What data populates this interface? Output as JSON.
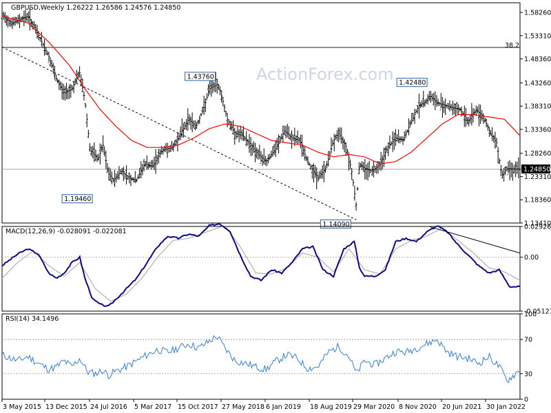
{
  "chart_data": [
    {
      "type": "ohlc",
      "header": "GBPUSD,Weekly  1.26222 1.26586 1.24576 1.24850",
      "watermark": "ActionForex.com",
      "colors": {
        "bars": "#000000",
        "ma": "#ff0000",
        "trend": "#000000",
        "fib": "#000000"
      },
      "y_ticks": [
        "1.58260",
        "1.53310",
        "1.48360",
        "1.43260",
        "1.38310",
        "1.33360",
        "1.28260",
        "1.23310",
        "1.18360",
        "1.13410"
      ],
      "ylim": [
        1.1341,
        1.6032
      ],
      "current_price": "1.24850",
      "fib": {
        "label": "38.2",
        "value": 1.508
      },
      "annotations": [
        {
          "text": "1.43760",
          "value": 1.4376,
          "t": 0.417
        },
        {
          "text": "1.19460",
          "value": 1.1946,
          "t": 0.185
        },
        {
          "text": "1.14090",
          "value": 1.1409,
          "t": 0.684
        },
        {
          "text": "1.42480",
          "value": 1.4248,
          "t": 0.826
        }
      ],
      "trendline": [
        [
          0.0,
          1.509
        ],
        [
          0.684,
          1.1409
        ]
      ],
      "price_path": [
        [
          0.0,
          1.575
        ],
        [
          0.02,
          1.56
        ],
        [
          0.05,
          1.575
        ],
        [
          0.07,
          1.535
        ],
        [
          0.09,
          1.49
        ],
        [
          0.105,
          1.44
        ],
        [
          0.12,
          1.41
        ],
        [
          0.135,
          1.42
        ],
        [
          0.15,
          1.455
        ],
        [
          0.16,
          1.395
        ],
        [
          0.17,
          1.29
        ],
        [
          0.185,
          1.27
        ],
        [
          0.195,
          1.3
        ],
        [
          0.205,
          1.24
        ],
        [
          0.215,
          1.225
        ],
        [
          0.23,
          1.245
        ],
        [
          0.245,
          1.23
        ],
        [
          0.26,
          1.225
        ],
        [
          0.275,
          1.26
        ],
        [
          0.29,
          1.255
        ],
        [
          0.31,
          1.29
        ],
        [
          0.33,
          1.295
        ],
        [
          0.345,
          1.325
        ],
        [
          0.36,
          1.355
        ],
        [
          0.375,
          1.34
        ],
        [
          0.39,
          1.38
        ],
        [
          0.4,
          1.42
        ],
        [
          0.417,
          1.43
        ],
        [
          0.425,
          1.4
        ],
        [
          0.435,
          1.355
        ],
        [
          0.45,
          1.325
        ],
        [
          0.465,
          1.32
        ],
        [
          0.48,
          1.3
        ],
        [
          0.495,
          1.28
        ],
        [
          0.51,
          1.265
        ],
        [
          0.53,
          1.295
        ],
        [
          0.545,
          1.33
        ],
        [
          0.56,
          1.315
        ],
        [
          0.575,
          1.31
        ],
        [
          0.59,
          1.265
        ],
        [
          0.61,
          1.23
        ],
        [
          0.625,
          1.25
        ],
        [
          0.64,
          1.31
        ],
        [
          0.65,
          1.325
        ],
        [
          0.665,
          1.295
        ],
        [
          0.675,
          1.245
        ],
        [
          0.684,
          1.17
        ],
        [
          0.69,
          1.26
        ],
        [
          0.7,
          1.25
        ],
        [
          0.715,
          1.245
        ],
        [
          0.73,
          1.26
        ],
        [
          0.745,
          1.295
        ],
        [
          0.76,
          1.315
        ],
        [
          0.775,
          1.31
        ],
        [
          0.79,
          1.35
        ],
        [
          0.805,
          1.385
        ],
        [
          0.815,
          1.39
        ],
        [
          0.826,
          1.405
        ],
        [
          0.84,
          1.39
        ],
        [
          0.855,
          1.385
        ],
        [
          0.87,
          1.38
        ],
        [
          0.885,
          1.375
        ],
        [
          0.9,
          1.35
        ],
        [
          0.915,
          1.375
        ],
        [
          0.93,
          1.36
        ],
        [
          0.945,
          1.32
        ],
        [
          0.955,
          1.305
        ],
        [
          0.965,
          1.235
        ],
        [
          0.975,
          1.25
        ],
        [
          1.0,
          1.2485
        ]
      ],
      "ma_path": [
        [
          0.0,
          1.575
        ],
        [
          0.05,
          1.56
        ],
        [
          0.09,
          1.52
        ],
        [
          0.13,
          1.47
        ],
        [
          0.16,
          1.42
        ],
        [
          0.19,
          1.375
        ],
        [
          0.22,
          1.34
        ],
        [
          0.25,
          1.31
        ],
        [
          0.28,
          1.295
        ],
        [
          0.31,
          1.295
        ],
        [
          0.34,
          1.3
        ],
        [
          0.37,
          1.315
        ],
        [
          0.4,
          1.335
        ],
        [
          0.43,
          1.345
        ],
        [
          0.46,
          1.34
        ],
        [
          0.49,
          1.325
        ],
        [
          0.52,
          1.31
        ],
        [
          0.55,
          1.305
        ],
        [
          0.58,
          1.3
        ],
        [
          0.61,
          1.285
        ],
        [
          0.64,
          1.275
        ],
        [
          0.67,
          1.28
        ],
        [
          0.7,
          1.275
        ],
        [
          0.73,
          1.26
        ],
        [
          0.76,
          1.265
        ],
        [
          0.79,
          1.285
        ],
        [
          0.82,
          1.315
        ],
        [
          0.85,
          1.345
        ],
        [
          0.88,
          1.365
        ],
        [
          0.91,
          1.365
        ],
        [
          0.94,
          1.36
        ],
        [
          0.97,
          1.355
        ],
        [
          1.0,
          1.32
        ]
      ]
    },
    {
      "type": "line",
      "title": "MACD(12,26,9) -0.028091 -0.022081",
      "y_ticks": [
        "0.029261",
        "0.00",
        "-0.051279"
      ],
      "ylim": [
        -0.0513,
        0.0293
      ],
      "zero_line": 0.0,
      "colors": {
        "macd": "#0a0a8a",
        "signal": "#b0b0b0",
        "trend": "#000000"
      },
      "trendline": [
        [
          0.826,
          0.029
        ],
        [
          1.0,
          0.004
        ]
      ],
      "macd_path": [
        [
          0.0,
          -0.008
        ],
        [
          0.03,
          0.003
        ],
        [
          0.05,
          0.008
        ],
        [
          0.07,
          0.003
        ],
        [
          0.09,
          -0.015
        ],
        [
          0.105,
          -0.02
        ],
        [
          0.12,
          -0.015
        ],
        [
          0.135,
          -0.005
        ],
        [
          0.15,
          0.0
        ],
        [
          0.16,
          -0.02
        ],
        [
          0.175,
          -0.04
        ],
        [
          0.19,
          -0.045
        ],
        [
          0.205,
          -0.047
        ],
        [
          0.22,
          -0.04
        ],
        [
          0.24,
          -0.03
        ],
        [
          0.26,
          -0.02
        ],
        [
          0.28,
          -0.005
        ],
        [
          0.3,
          0.01
        ],
        [
          0.32,
          0.02
        ],
        [
          0.34,
          0.018
        ],
        [
          0.36,
          0.022
        ],
        [
          0.38,
          0.02
        ],
        [
          0.4,
          0.03
        ],
        [
          0.42,
          0.032
        ],
        [
          0.44,
          0.025
        ],
        [
          0.46,
          0.002
        ],
        [
          0.48,
          -0.018
        ],
        [
          0.5,
          -0.022
        ],
        [
          0.52,
          -0.012
        ],
        [
          0.54,
          -0.015
        ],
        [
          0.56,
          -0.005
        ],
        [
          0.58,
          0.008
        ],
        [
          0.6,
          0.01
        ],
        [
          0.62,
          -0.012
        ],
        [
          0.64,
          -0.018
        ],
        [
          0.66,
          0.008
        ],
        [
          0.68,
          0.015
        ],
        [
          0.69,
          -0.01
        ],
        [
          0.7,
          -0.018
        ],
        [
          0.72,
          -0.018
        ],
        [
          0.74,
          -0.012
        ],
        [
          0.76,
          0.015
        ],
        [
          0.78,
          0.018
        ],
        [
          0.8,
          0.015
        ],
        [
          0.82,
          0.024
        ],
        [
          0.84,
          0.03
        ],
        [
          0.86,
          0.024
        ],
        [
          0.88,
          0.012
        ],
        [
          0.9,
          0.002
        ],
        [
          0.92,
          -0.008
        ],
        [
          0.94,
          -0.015
        ],
        [
          0.96,
          -0.012
        ],
        [
          0.98,
          -0.028
        ],
        [
          1.0,
          -0.028
        ]
      ],
      "signal_path": [
        [
          0.0,
          -0.02
        ],
        [
          0.03,
          -0.005
        ],
        [
          0.06,
          0.006
        ],
        [
          0.09,
          -0.008
        ],
        [
          0.12,
          -0.018
        ],
        [
          0.15,
          -0.005
        ],
        [
          0.18,
          -0.03
        ],
        [
          0.21,
          -0.042
        ],
        [
          0.24,
          -0.035
        ],
        [
          0.27,
          -0.02
        ],
        [
          0.3,
          0.0
        ],
        [
          0.33,
          0.016
        ],
        [
          0.36,
          0.018
        ],
        [
          0.4,
          0.025
        ],
        [
          0.43,
          0.03
        ],
        [
          0.46,
          0.01
        ],
        [
          0.49,
          -0.015
        ],
        [
          0.52,
          -0.016
        ],
        [
          0.55,
          -0.01
        ],
        [
          0.58,
          0.004
        ],
        [
          0.61,
          0.0
        ],
        [
          0.64,
          -0.014
        ],
        [
          0.67,
          0.008
        ],
        [
          0.7,
          -0.012
        ],
        [
          0.73,
          -0.016
        ],
        [
          0.76,
          0.008
        ],
        [
          0.79,
          0.016
        ],
        [
          0.82,
          0.02
        ],
        [
          0.85,
          0.028
        ],
        [
          0.88,
          0.016
        ],
        [
          0.91,
          0.004
        ],
        [
          0.94,
          -0.01
        ],
        [
          0.97,
          -0.014
        ],
        [
          1.0,
          -0.022
        ]
      ]
    },
    {
      "type": "line",
      "title": "RSI(14) 34.1496",
      "y_ticks": [
        "100",
        "70",
        "30",
        "0"
      ],
      "ylim": [
        0,
        100
      ],
      "levels": [
        70,
        30
      ],
      "colors": {
        "rsi": "#2f7fdf"
      },
      "rsi_path": [
        [
          0.0,
          52
        ],
        [
          0.03,
          45
        ],
        [
          0.05,
          50
        ],
        [
          0.07,
          42
        ],
        [
          0.09,
          35
        ],
        [
          0.105,
          38
        ],
        [
          0.12,
          45
        ],
        [
          0.135,
          38
        ],
        [
          0.15,
          48
        ],
        [
          0.165,
          32
        ],
        [
          0.18,
          30
        ],
        [
          0.195,
          34
        ],
        [
          0.205,
          28
        ],
        [
          0.22,
          33
        ],
        [
          0.24,
          38
        ],
        [
          0.26,
          45
        ],
        [
          0.28,
          52
        ],
        [
          0.3,
          58
        ],
        [
          0.32,
          55
        ],
        [
          0.34,
          60
        ],
        [
          0.36,
          65
        ],
        [
          0.38,
          60
        ],
        [
          0.4,
          68
        ],
        [
          0.415,
          74
        ],
        [
          0.43,
          60
        ],
        [
          0.45,
          45
        ],
        [
          0.47,
          42
        ],
        [
          0.49,
          38
        ],
        [
          0.51,
          35
        ],
        [
          0.53,
          45
        ],
        [
          0.55,
          52
        ],
        [
          0.57,
          48
        ],
        [
          0.59,
          36
        ],
        [
          0.61,
          38
        ],
        [
          0.63,
          55
        ],
        [
          0.65,
          62
        ],
        [
          0.67,
          50
        ],
        [
          0.684,
          30
        ],
        [
          0.7,
          45
        ],
        [
          0.72,
          40
        ],
        [
          0.74,
          48
        ],
        [
          0.76,
          56
        ],
        [
          0.78,
          55
        ],
        [
          0.8,
          60
        ],
        [
          0.82,
          65
        ],
        [
          0.84,
          70
        ],
        [
          0.86,
          55
        ],
        [
          0.88,
          50
        ],
        [
          0.9,
          48
        ],
        [
          0.92,
          42
        ],
        [
          0.94,
          50
        ],
        [
          0.96,
          38
        ],
        [
          0.975,
          22
        ],
        [
          1.0,
          34
        ]
      ]
    }
  ],
  "x_axis": {
    "labels": [
      "3 May 2015",
      "13 Dec 2015",
      "24 Jul 2016",
      "5 Mar 2017",
      "15 Oct 2017",
      "27 May 2018",
      "6 Jan 2019",
      "18 Aug 2019",
      "29 Mar 2020",
      "8 Nov 2020",
      "20 Jun 2021",
      "30 Jan 2022"
    ]
  }
}
